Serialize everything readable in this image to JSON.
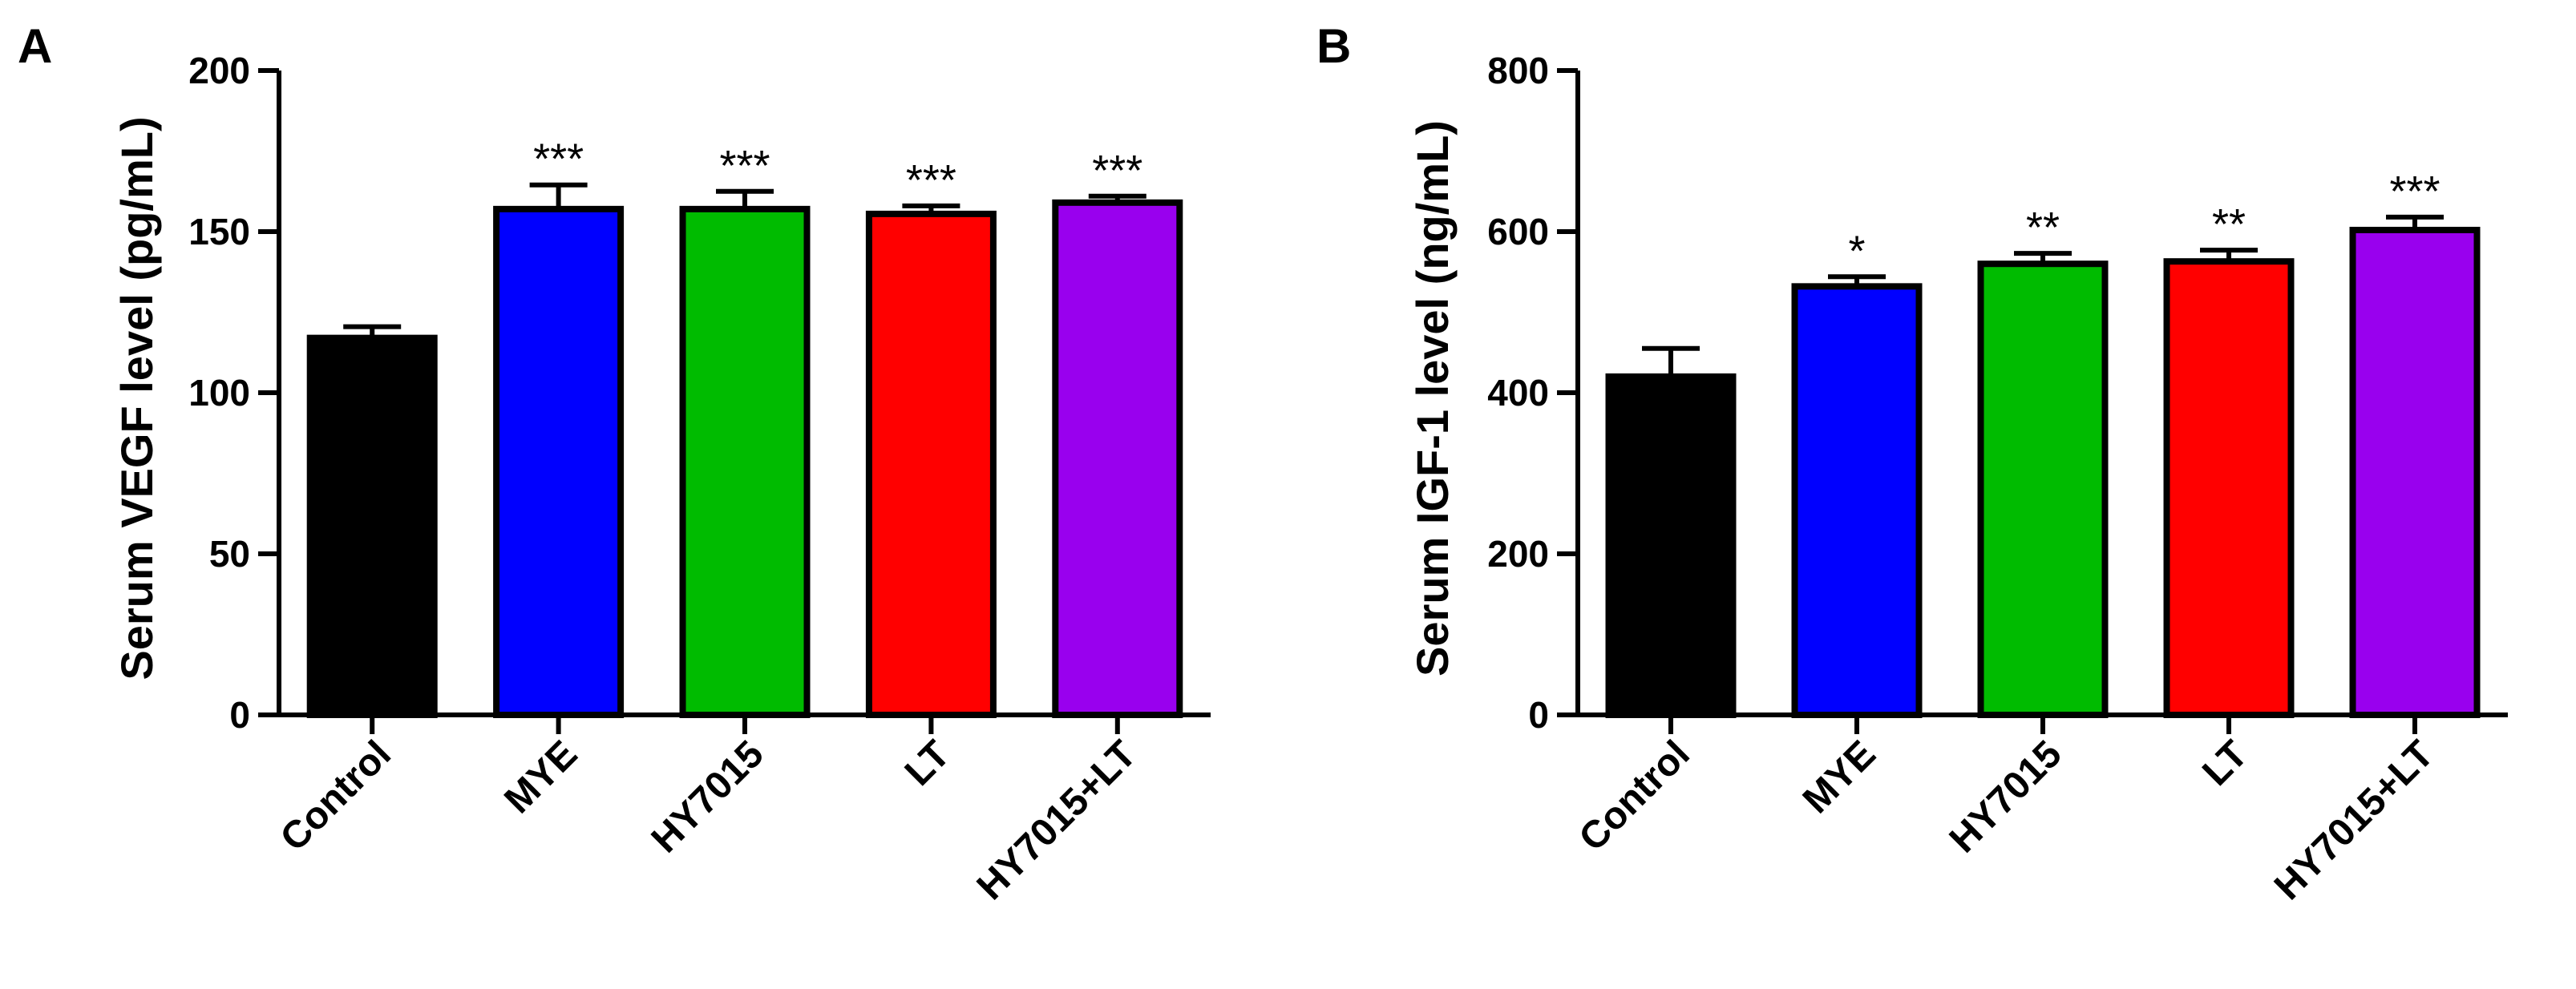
{
  "chart_data": [
    {
      "type": "bar",
      "panel": "A",
      "ylabel": "Serum VEGF level (pg/mL)",
      "ylim": [
        0,
        200
      ],
      "yticks": [
        0,
        50,
        100,
        150,
        200
      ],
      "categories": [
        "Control",
        "MYE",
        "HY7015",
        "LT",
        "HY7015+LT"
      ],
      "values": [
        117,
        157,
        157,
        155.5,
        159
      ],
      "errors": [
        3.5,
        7.5,
        5.5,
        2.5,
        2
      ],
      "significance": [
        "",
        "***",
        "***",
        "***",
        "***"
      ],
      "colors": [
        "#000000",
        "#0000ff",
        "#00bb00",
        "#ff0000",
        "#9900ee"
      ],
      "grid": false,
      "legend": "none"
    },
    {
      "type": "bar",
      "panel": "B",
      "ylabel": "Serum IGF-1 level (ng/mL)",
      "ylim": [
        0,
        800
      ],
      "yticks": [
        0,
        200,
        400,
        600,
        800
      ],
      "categories": [
        "Control",
        "MYE",
        "HY7015",
        "LT",
        "HY7015+LT"
      ],
      "values": [
        420,
        532,
        560,
        563,
        602
      ],
      "errors": [
        35,
        12,
        13,
        14,
        16
      ],
      "significance": [
        "",
        "*",
        "**",
        "**",
        "***"
      ],
      "colors": [
        "#000000",
        "#0000ff",
        "#00bb00",
        "#ff0000",
        "#9900ee"
      ],
      "grid": false,
      "legend": "none"
    }
  ]
}
